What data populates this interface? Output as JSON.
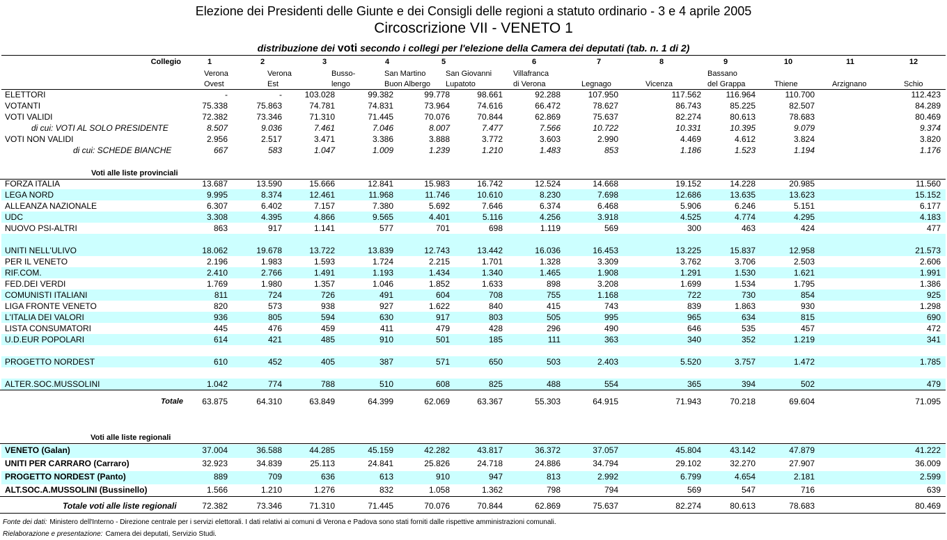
{
  "header": {
    "title": "Elezione dei Presidenti delle Giunte e dei Consigli delle regioni a statuto ordinario - 3 e 4 aprile 2005",
    "subtitle": "Circoscrizione VII - VENETO 1",
    "caption": [
      "distribuzione dei",
      "voti",
      "secondo i collegi per l'elezione della Camera dei deputati (tab. n. 1 di 2)"
    ]
  },
  "table": {
    "collegio_label": "Collegio",
    "columns": [
      {
        "number": 1,
        "name": [
          "Verona",
          "Ovest"
        ]
      },
      {
        "number": 2,
        "name": [
          "Verona",
          "Est"
        ]
      },
      {
        "number": 3,
        "name": [
          "Busso-",
          "lengo"
        ]
      },
      {
        "number": 4,
        "name": [
          "San Martino",
          "Buon Albergo"
        ]
      },
      {
        "number": 5,
        "name": [
          "San Giovanni",
          "Lupatoto"
        ]
      },
      {
        "number": 6,
        "name": [
          "Villafranca",
          "di Verona"
        ]
      },
      {
        "number": 7,
        "name": [
          "Legnago"
        ]
      },
      {
        "number": 8,
        "name": [
          "Vicenza"
        ]
      },
      {
        "number": 9,
        "name": [
          "Bassano",
          "del Grappa"
        ]
      },
      {
        "number": 10,
        "name": [
          "Thiene"
        ]
      },
      {
        "number": 11,
        "name": [
          "Arzignano"
        ]
      },
      {
        "number": 12,
        "name": [
          "Schio"
        ]
      }
    ],
    "general": [
      {
        "label": "ELETTORI",
        "values": [
          "-",
          "-",
          "103.028",
          "99.382",
          "99.778",
          "98.661",
          "92.288",
          "107.950",
          "117.562",
          "116.964",
          "110.700",
          "112.423"
        ]
      },
      {
        "label": "VOTANTI",
        "values": [
          "75.338",
          "75.863",
          "74.781",
          "74.831",
          "73.964",
          "74.616",
          "66.472",
          "78.627",
          "86.743",
          "85.225",
          "82.507",
          "84.289"
        ]
      },
      {
        "label": "VOTI VALIDI",
        "values": [
          "72.382",
          "73.346",
          "71.310",
          "71.445",
          "70.076",
          "70.844",
          "62.869",
          "75.637",
          "82.274",
          "80.613",
          "78.683",
          "80.469"
        ]
      },
      {
        "label": "di cui: VOTI AL SOLO PRESIDENTE",
        "values": [
          "8.507",
          "9.036",
          "7.461",
          "7.046",
          "8.007",
          "7.477",
          "7.566",
          "10.722",
          "10.331",
          "10.395",
          "9.079",
          "9.374"
        ]
      },
      {
        "label": "VOTI NON VALIDI",
        "values": [
          "2.956",
          "2.517",
          "3.471",
          "3.386",
          "3.888",
          "3.772",
          "3.603",
          "2.990",
          "4.469",
          "4.612",
          "3.824",
          "3.820"
        ]
      },
      {
        "label": "di cui:  SCHEDE BIANCHE",
        "values": [
          "667",
          "583",
          "1.047",
          "1.009",
          "1.239",
          "1.210",
          "1.483",
          "853",
          "1.186",
          "1.523",
          "1.194",
          "1.176"
        ]
      }
    ],
    "provincial_heading": "Voti alle liste provinciali",
    "provincial": [
      {
        "label": "FORZA ITALIA",
        "values": [
          "13.687",
          "13.590",
          "15.666",
          "12.841",
          "15.983",
          "16.742",
          "12.524",
          "14.668",
          "19.152",
          "14.228",
          "20.985",
          "11.560"
        ]
      },
      {
        "label": "LEGA NORD",
        "values": [
          "9.995",
          "8.374",
          "12.461",
          "11.968",
          "11.746",
          "10.610",
          "8.230",
          "7.698",
          "12.686",
          "13.635",
          "13.623",
          "15.152"
        ]
      },
      {
        "label": "ALLEANZA NAZIONALE",
        "values": [
          "6.307",
          "6.402",
          "7.157",
          "7.380",
          "5.692",
          "7.646",
          "6.374",
          "6.468",
          "5.906",
          "6.246",
          "5.151",
          "6.177"
        ]
      },
      {
        "label": "UDC",
        "values": [
          "3.308",
          "4.395",
          "4.866",
          "9.565",
          "4.401",
          "5.116",
          "4.256",
          "3.918",
          "4.525",
          "4.774",
          "4.295",
          "4.183"
        ]
      },
      {
        "label": "NUOVO PSI-ALTRI",
        "values": [
          "863",
          "917",
          "1.141",
          "577",
          "701",
          "698",
          "1.119",
          "569",
          "300",
          "463",
          "424",
          "477"
        ]
      },
      {
        "label": "UNITI NELL'ULIVO",
        "values": [
          "18.062",
          "19.678",
          "13.722",
          "13.839",
          "12.743",
          "13.442",
          "16.036",
          "16.453",
          "13.225",
          "15.837",
          "12.958",
          "21.573"
        ]
      },
      {
        "label": "PER IL VENETO",
        "values": [
          "2.196",
          "1.983",
          "1.593",
          "1.724",
          "2.215",
          "1.701",
          "1.328",
          "3.309",
          "3.762",
          "3.706",
          "2.503",
          "2.606"
        ]
      },
      {
        "label": "RIF.COM.",
        "values": [
          "2.410",
          "2.766",
          "1.491",
          "1.193",
          "1.434",
          "1.340",
          "1.465",
          "1.908",
          "1.291",
          "1.530",
          "1.621",
          "1.991"
        ]
      },
      {
        "label": "FED.DEI VERDI",
        "values": [
          "1.769",
          "1.980",
          "1.357",
          "1.046",
          "1.852",
          "1.633",
          "898",
          "3.208",
          "1.699",
          "1.534",
          "1.795",
          "1.386"
        ]
      },
      {
        "label": "COMUNISTI ITALIANI",
        "values": [
          "811",
          "724",
          "726",
          "491",
          "604",
          "708",
          "755",
          "1.168",
          "722",
          "730",
          "854",
          "925"
        ]
      },
      {
        "label": "LIGA FRONTE VENETO",
        "values": [
          "820",
          "573",
          "938",
          "927",
          "1.622",
          "840",
          "415",
          "743",
          "839",
          "1.863",
          "930",
          "1.298"
        ]
      },
      {
        "label": "L'ITALIA DEI VALORI",
        "values": [
          "936",
          "805",
          "594",
          "630",
          "917",
          "803",
          "505",
          "995",
          "965",
          "634",
          "815",
          "690"
        ]
      },
      {
        "label": "LISTA CONSUMATORI",
        "values": [
          "445",
          "476",
          "459",
          "411",
          "479",
          "428",
          "296",
          "490",
          "646",
          "535",
          "457",
          "472"
        ]
      },
      {
        "label": "U.D.EUR POPOLARI",
        "values": [
          "614",
          "421",
          "485",
          "910",
          "501",
          "185",
          "111",
          "363",
          "340",
          "352",
          "1.219",
          "341"
        ]
      },
      {
        "label": "PROGETTO NORDEST",
        "values": [
          "610",
          "452",
          "405",
          "387",
          "571",
          "650",
          "503",
          "2.403",
          "5.520",
          "3.757",
          "1.472",
          "1.785"
        ]
      },
      {
        "label": "ALTER.SOC.MUSSOLINI",
        "values": [
          "1.042",
          "774",
          "788",
          "510",
          "608",
          "825",
          "488",
          "554",
          "365",
          "394",
          "502",
          "479"
        ]
      }
    ],
    "provincial_total": {
      "label": "Totale",
      "values": [
        "63.875",
        "64.310",
        "63.849",
        "64.399",
        "62.069",
        "63.367",
        "55.303",
        "64.915",
        "71.943",
        "70.218",
        "69.604",
        "71.095"
      ]
    },
    "regional_heading": "Voti alle liste regionali",
    "regional": [
      {
        "label": "VENETO (Galan)",
        "values": [
          "37.004",
          "36.588",
          "44.285",
          "45.159",
          "42.282",
          "43.817",
          "36.372",
          "37.057",
          "45.804",
          "43.142",
          "47.879",
          "41.222"
        ]
      },
      {
        "label": "UNITI PER CARRARO (Carraro)",
        "values": [
          "32.923",
          "34.839",
          "25.113",
          "24.841",
          "25.826",
          "24.718",
          "24.886",
          "34.794",
          "29.102",
          "32.270",
          "27.907",
          "36.009"
        ]
      },
      {
        "label": "PROGETTO NORDEST (Panto)",
        "values": [
          "889",
          "709",
          "636",
          "613",
          "910",
          "947",
          "813",
          "2.992",
          "6.799",
          "4.654",
          "2.181",
          "2.599"
        ]
      },
      {
        "label": "ALT.SOC.A.MUSSOLINI (Bussinello)",
        "values": [
          "1.566",
          "1.210",
          "1.276",
          "832",
          "1.058",
          "1.362",
          "798",
          "794",
          "569",
          "547",
          "716",
          "639"
        ]
      }
    ],
    "regional_total": {
      "label": "Totale voti alle liste regionali",
      "values": [
        "72.382",
        "73.346",
        "71.310",
        "71.445",
        "70.076",
        "70.844",
        "62.869",
        "75.637",
        "82.274",
        "80.613",
        "78.683",
        "80.469"
      ]
    }
  },
  "footer": [
    {
      "lead": "Fonte dei dati:",
      "text": "Ministero dell'Interno - Direzione centrale per i servizi elettorali. I dati relativi ai comuni di Verona e Padova  sono stati forniti dalle rispettive amministrazioni comunali."
    },
    {
      "lead": "Rielaborazione e presentazione:",
      "text": "Camera dei deputati, Servizio Studi."
    }
  ]
}
